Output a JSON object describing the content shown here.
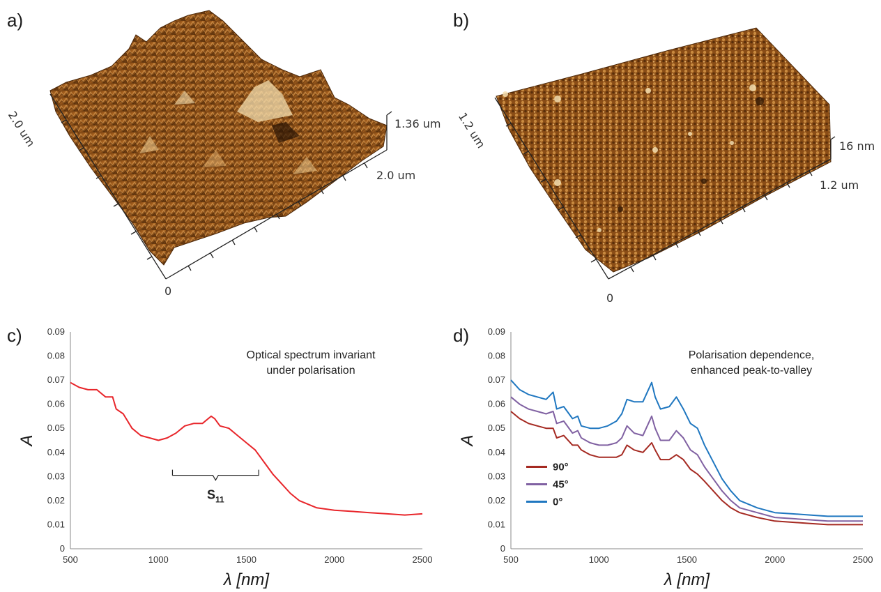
{
  "panels": {
    "a": {
      "label": "a)",
      "side_label": "2.0 um",
      "bottom_label": "2.0 um",
      "height_label": "1.36 um",
      "origin_label": "0"
    },
    "b": {
      "label": "b)",
      "side_label": "1.2 um",
      "bottom_label": "1.2 um",
      "height_label": "16 nm",
      "origin_label": "0"
    },
    "c": {
      "label": "c)"
    },
    "d": {
      "label": "d)"
    }
  },
  "colors": {
    "afm_dark": "#3d1f06",
    "afm_mid": "#9c5a1b",
    "afm_light": "#f2dcae",
    "red": "#e8252a",
    "dark_red": "#a52a22",
    "purple": "#8061a2",
    "blue": "#1f77c0"
  },
  "chart_data": [
    {
      "type": "line",
      "annotation": [
        "Optical spectrum invariant",
        "under polarisation"
      ],
      "xlabel": "λ [nm]",
      "ylabel": "A",
      "xlim": [
        500,
        2500
      ],
      "ylim": [
        0,
        0.09
      ],
      "xticks": [
        "500",
        "1000",
        "1500",
        "2000",
        "2500"
      ],
      "yticks": [
        "0",
        "0.01",
        "0.02",
        "0.03",
        "0.04",
        "0.05",
        "0.06",
        "0.07",
        "0.08",
        "0.09"
      ],
      "bracket_label": "S",
      "bracket_sub": "11",
      "bracket_range": [
        1080,
        1570
      ],
      "grid": false,
      "series": [
        {
          "color": "#e8252a",
          "x": [
            500,
            550,
            600,
            650,
            700,
            740,
            760,
            800,
            850,
            900,
            950,
            1000,
            1050,
            1100,
            1150,
            1200,
            1250,
            1300,
            1320,
            1350,
            1400,
            1450,
            1500,
            1550,
            1600,
            1650,
            1700,
            1750,
            1800,
            1900,
            2000,
            2100,
            2200,
            2300,
            2400,
            2500
          ],
          "y": [
            0.069,
            0.067,
            0.066,
            0.066,
            0.063,
            0.063,
            0.058,
            0.056,
            0.05,
            0.047,
            0.046,
            0.045,
            0.046,
            0.048,
            0.051,
            0.052,
            0.052,
            0.055,
            0.054,
            0.051,
            0.05,
            0.047,
            0.044,
            0.041,
            0.036,
            0.031,
            0.027,
            0.023,
            0.02,
            0.017,
            0.016,
            0.0155,
            0.015,
            0.0145,
            0.014,
            0.0145
          ]
        }
      ]
    },
    {
      "type": "line",
      "annotation": [
        "Polarisation dependence,",
        "enhanced peak-to-valley"
      ],
      "xlabel": "λ [nm]",
      "ylabel": "A",
      "xlim": [
        500,
        2500
      ],
      "ylim": [
        0,
        0.09
      ],
      "xticks": [
        "500",
        "1000",
        "1500",
        "2000",
        "2500"
      ],
      "yticks": [
        "0",
        "0.01",
        "0.02",
        "0.03",
        "0.04",
        "0.05",
        "0.06",
        "0.07",
        "0.08",
        "0.09"
      ],
      "legend_position": "bottom-left",
      "grid": false,
      "series": [
        {
          "name": "90°",
          "color": "#a52a22",
          "x": [
            500,
            550,
            600,
            650,
            700,
            740,
            760,
            800,
            850,
            880,
            900,
            950,
            1000,
            1050,
            1100,
            1130,
            1160,
            1200,
            1250,
            1300,
            1320,
            1350,
            1400,
            1440,
            1480,
            1520,
            1560,
            1600,
            1650,
            1700,
            1750,
            1800,
            1900,
            2000,
            2100,
            2200,
            2300,
            2400,
            2500
          ],
          "y": [
            0.057,
            0.054,
            0.052,
            0.051,
            0.05,
            0.05,
            0.046,
            0.047,
            0.043,
            0.043,
            0.041,
            0.039,
            0.038,
            0.038,
            0.038,
            0.039,
            0.043,
            0.041,
            0.04,
            0.044,
            0.041,
            0.037,
            0.037,
            0.039,
            0.037,
            0.033,
            0.031,
            0.028,
            0.024,
            0.02,
            0.017,
            0.015,
            0.013,
            0.0115,
            0.011,
            0.0105,
            0.01,
            0.01,
            0.01
          ]
        },
        {
          "name": "45°",
          "color": "#8061a2",
          "x": [
            500,
            550,
            600,
            650,
            700,
            740,
            760,
            800,
            850,
            880,
            900,
            950,
            1000,
            1050,
            1100,
            1130,
            1160,
            1200,
            1250,
            1300,
            1320,
            1350,
            1400,
            1440,
            1480,
            1520,
            1560,
            1600,
            1650,
            1700,
            1750,
            1800,
            1900,
            2000,
            2100,
            2200,
            2300,
            2400,
            2500
          ],
          "y": [
            0.063,
            0.06,
            0.058,
            0.057,
            0.056,
            0.057,
            0.052,
            0.053,
            0.048,
            0.049,
            0.046,
            0.044,
            0.043,
            0.043,
            0.044,
            0.046,
            0.051,
            0.048,
            0.047,
            0.055,
            0.05,
            0.045,
            0.045,
            0.049,
            0.046,
            0.041,
            0.039,
            0.034,
            0.029,
            0.024,
            0.02,
            0.017,
            0.015,
            0.013,
            0.0125,
            0.012,
            0.0115,
            0.0115,
            0.0115
          ]
        },
        {
          "name": "0°",
          "color": "#1f77c0",
          "x": [
            500,
            550,
            600,
            650,
            700,
            740,
            760,
            800,
            850,
            880,
            900,
            950,
            1000,
            1050,
            1100,
            1130,
            1160,
            1200,
            1250,
            1300,
            1320,
            1350,
            1400,
            1440,
            1480,
            1520,
            1560,
            1600,
            1650,
            1700,
            1750,
            1800,
            1900,
            2000,
            2100,
            2200,
            2300,
            2400,
            2500
          ],
          "y": [
            0.07,
            0.066,
            0.064,
            0.063,
            0.062,
            0.065,
            0.058,
            0.059,
            0.054,
            0.055,
            0.051,
            0.05,
            0.05,
            0.051,
            0.053,
            0.056,
            0.062,
            0.061,
            0.061,
            0.069,
            0.063,
            0.058,
            0.059,
            0.063,
            0.058,
            0.052,
            0.05,
            0.043,
            0.036,
            0.029,
            0.024,
            0.02,
            0.017,
            0.015,
            0.0145,
            0.014,
            0.0135,
            0.0135,
            0.0135
          ]
        }
      ]
    }
  ]
}
